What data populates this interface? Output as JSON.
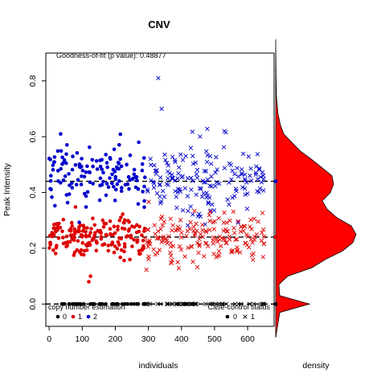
{
  "chart_data": {
    "type": "scatter",
    "title": "CNV",
    "xlabel": "individuals",
    "ylabel": "Peak Intensity",
    "xlim": [
      -10,
      680
    ],
    "ylim": [
      -0.08,
      0.9
    ],
    "x_ticks": [
      0,
      100,
      200,
      300,
      400,
      500,
      600
    ],
    "y_ticks": [
      0.0,
      0.2,
      0.4,
      0.6,
      0.8
    ],
    "grid": false,
    "fit_annotation": "Goodness-of-fit (p value): 0.48877",
    "thresholds": [
      0.44,
      0.24,
      0.0
    ],
    "legend_left": {
      "title": "copy number estimation",
      "position": "bottom-left",
      "items": [
        {
          "label": "0",
          "color": "#000000"
        },
        {
          "label": "1",
          "color": "#dd0000"
        },
        {
          "label": "2",
          "color": "#0000cc"
        }
      ]
    },
    "legend_right": {
      "title": "Case-control status",
      "position": "bottom-right",
      "items": [
        {
          "label": "0"
        },
        {
          "label": "1"
        }
      ]
    },
    "groups": [
      {
        "copy_number": "2",
        "status": "0",
        "marker": "circle",
        "color": "#0000cc",
        "x_range": [
          0,
          290
        ],
        "y_center": 0.47,
        "y_spread": 0.055,
        "n": 135
      },
      {
        "copy_number": "1",
        "status": "0",
        "marker": "circle",
        "color": "#dd0000",
        "x_range": [
          0,
          290
        ],
        "y_center": 0.24,
        "y_spread": 0.04,
        "n": 175
      },
      {
        "copy_number": "0",
        "status": "0",
        "marker": "circle",
        "color": "#000000",
        "x_range": [
          0,
          290
        ],
        "y_center": 0.0,
        "y_spread": 0.0,
        "n": 40
      },
      {
        "copy_number": "2",
        "status": "1",
        "marker": "cross",
        "color": "#0000cc",
        "x_range": [
          290,
          650
        ],
        "y_center": 0.45,
        "y_spread": 0.065,
        "n": 165
      },
      {
        "copy_number": "1",
        "status": "1",
        "marker": "cross",
        "color": "#dd0000",
        "x_range": [
          290,
          650
        ],
        "y_center": 0.24,
        "y_spread": 0.05,
        "n": 175
      },
      {
        "copy_number": "0",
        "status": "1",
        "marker": "cross",
        "color": "#000000",
        "x_range": [
          290,
          650
        ],
        "y_center": 0.0,
        "y_spread": 0.0,
        "n": 45
      }
    ],
    "outliers": [
      {
        "x": 330,
        "y": 0.81,
        "marker": "cross",
        "color": "#0000cc"
      },
      {
        "x": 340,
        "y": 0.7,
        "marker": "cross",
        "color": "#0000cc"
      },
      {
        "x": 125,
        "y": 0.1,
        "marker": "circle",
        "color": "#dd0000"
      },
      {
        "x": 120,
        "y": 0.08,
        "marker": "circle",
        "color": "#dd0000"
      }
    ],
    "density": {
      "label": "density",
      "color": "#ff0000",
      "y": [
        -0.12,
        -0.03,
        0.0,
        0.03,
        0.07,
        0.1,
        0.13,
        0.16,
        0.19,
        0.22,
        0.25,
        0.28,
        0.31,
        0.34,
        0.37,
        0.4,
        0.43,
        0.46,
        0.49,
        0.52,
        0.55,
        0.58,
        0.61,
        0.64,
        0.68,
        0.74,
        0.8,
        0.95
      ],
      "value": [
        0.0,
        0.05,
        0.42,
        0.05,
        0.04,
        0.15,
        0.45,
        0.62,
        0.83,
        0.96,
        1.0,
        0.94,
        0.76,
        0.64,
        0.58,
        0.68,
        0.72,
        0.7,
        0.57,
        0.44,
        0.3,
        0.2,
        0.1,
        0.06,
        0.03,
        0.01,
        0.005,
        0.0
      ]
    }
  }
}
